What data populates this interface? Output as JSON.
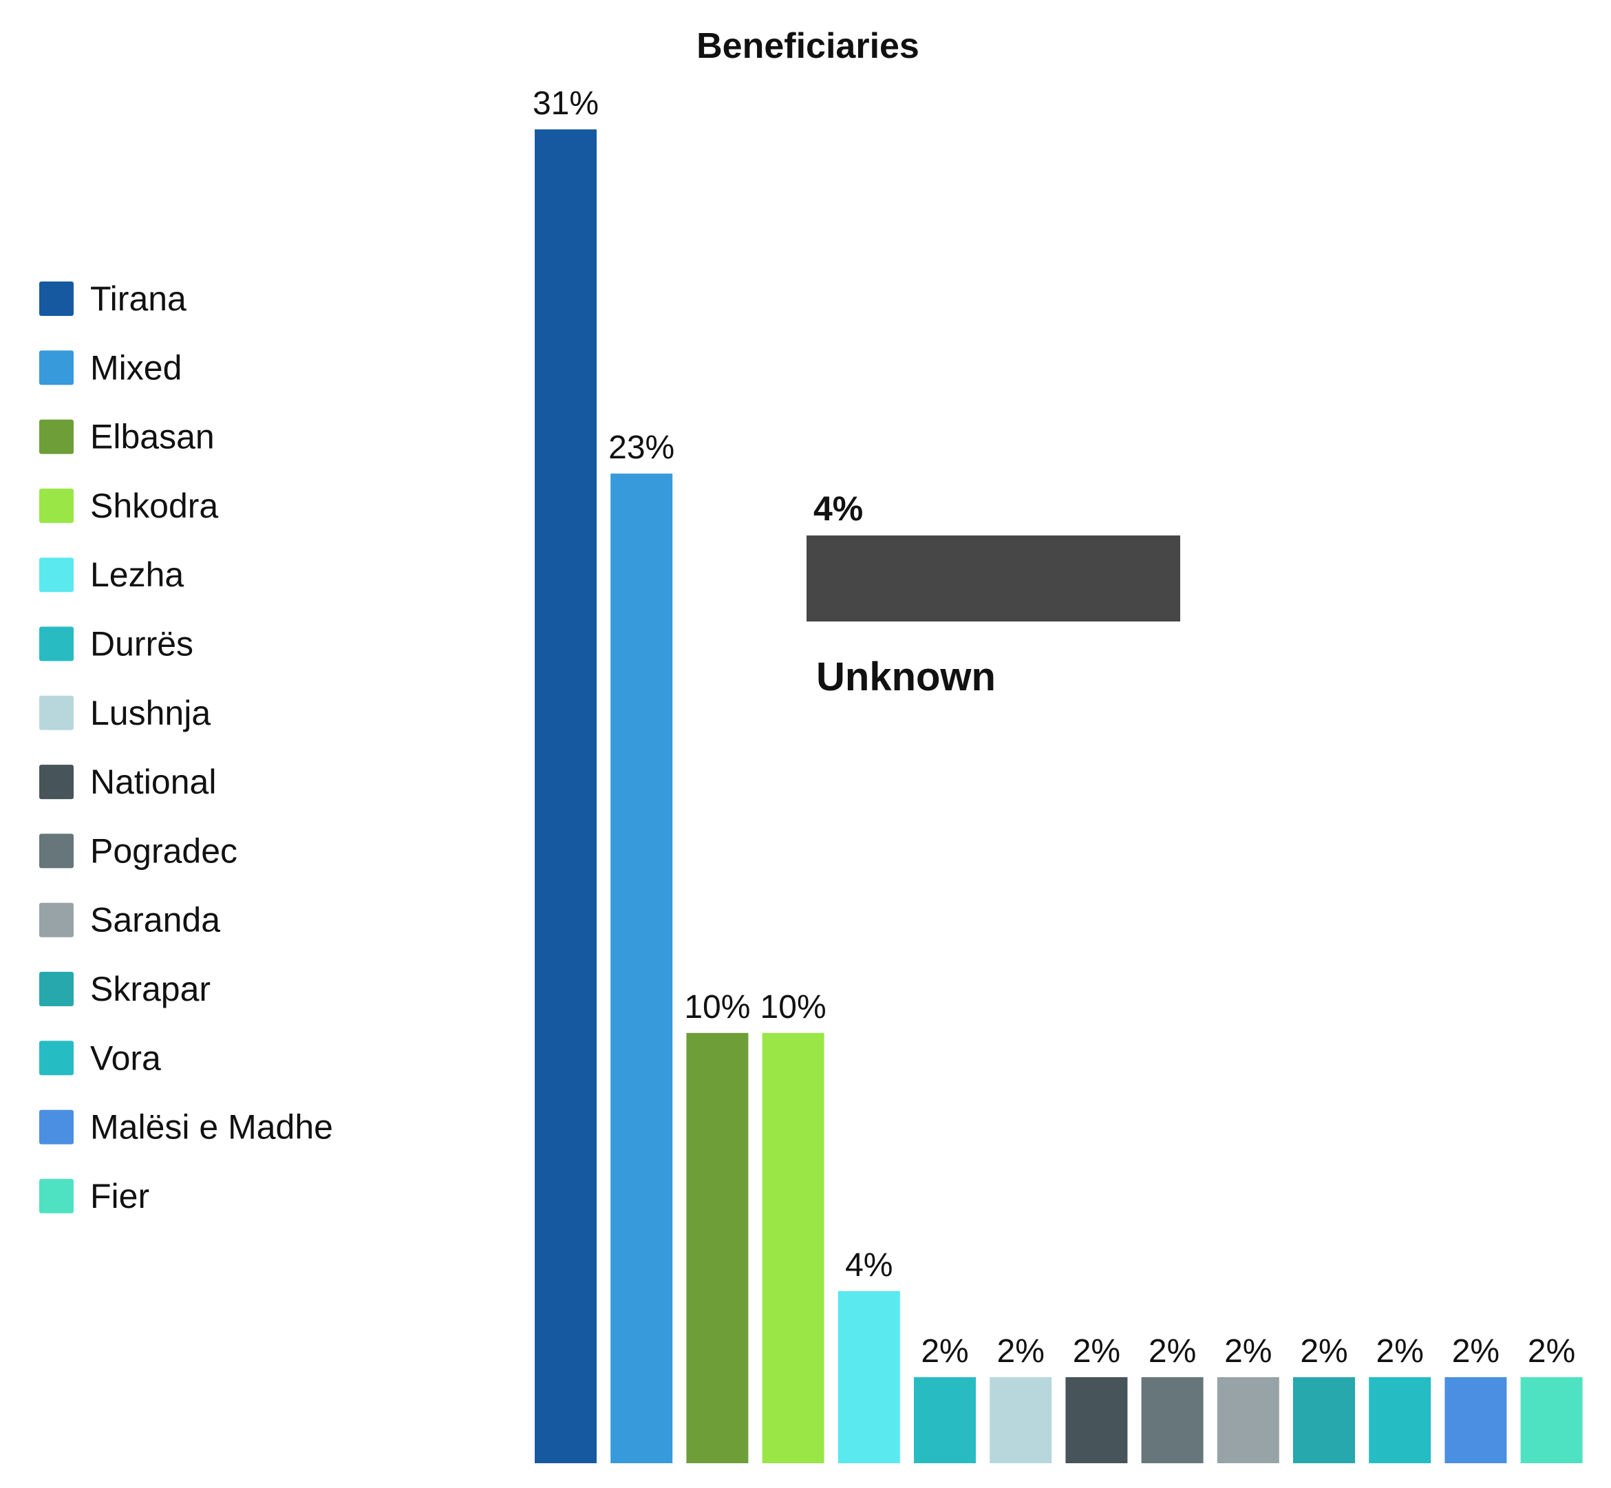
{
  "chart_data": {
    "type": "bar",
    "title": "Beneficiaries",
    "xlabel": "",
    "ylabel": "",
    "ylim": [
      0,
      31
    ],
    "grid": false,
    "legend_position": "left",
    "unit": "%",
    "categories": [
      "Tirana",
      "Mixed",
      "Elbasan",
      "Shkodra",
      "Lezha",
      "Durrës",
      "Lushnja",
      "National",
      "Pogradec",
      "Saranda",
      "Skrapar",
      "Vora",
      "Malësi e Madhe",
      "Fier"
    ],
    "values": [
      31,
      23,
      10,
      10,
      4,
      2,
      2,
      2,
      2,
      2,
      2,
      2,
      2,
      2
    ],
    "value_labels": [
      "31%",
      "23%",
      "10%",
      "10%",
      "4%",
      "2%",
      "2%",
      "2%",
      "2%",
      "2%",
      "2%",
      "2%",
      "2%",
      "2%"
    ],
    "colors": [
      "#1659a0",
      "#379adb",
      "#6e9e37",
      "#9be647",
      "#59e9ef",
      "#28bbc2",
      "#b8d7dc",
      "#47545a",
      "#66767a",
      "#97a3a7",
      "#26a8ad",
      "#26bcc3",
      "#4a8fe1",
      "#4fe2c2"
    ],
    "inset": {
      "label": "Unknown",
      "value": 4,
      "value_label": "4%",
      "color": "#474747"
    }
  }
}
